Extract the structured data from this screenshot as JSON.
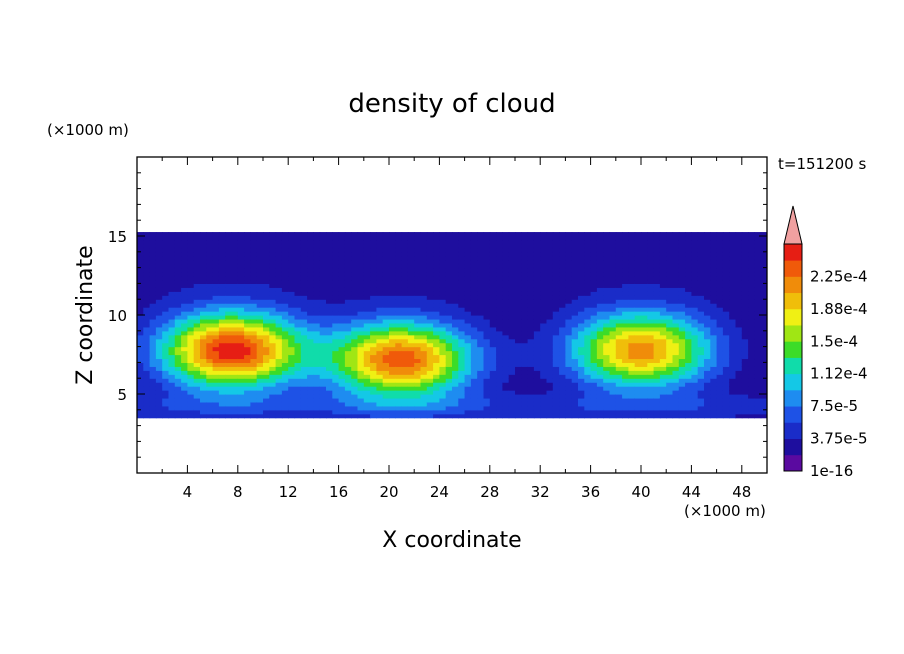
{
  "chart_data": {
    "type": "heatmap",
    "title": "density of cloud",
    "xlabel": "X coordinate",
    "ylabel": "Z coordinate",
    "x_unit": "(×1000 m)",
    "y_unit": "(×1000 m)",
    "time_label": "t=151200 s",
    "xlim": [
      0,
      50
    ],
    "ylim": [
      0,
      20
    ],
    "x_ticks": [
      4,
      8,
      12,
      16,
      20,
      24,
      28,
      32,
      36,
      40,
      44,
      48
    ],
    "y_ticks": [
      5,
      10,
      15
    ],
    "colorbar": {
      "labels": [
        "1e-16",
        "3.75e-5",
        "7.5e-5",
        "1.12e-4",
        "1.5e-4",
        "1.88e-4",
        "2.25e-4"
      ],
      "levels": [
        1e-16,
        1.875e-05,
        3.75e-05,
        5.625e-05,
        7.5e-05,
        9.375e-05,
        0.0001125,
        0.00013125,
        0.00015,
        0.00016875,
        0.0001875,
        0.00020625,
        0.000225,
        0.00024375
      ],
      "colors": [
        "#5a0aa0",
        "#1e0e9e",
        "#1a2cc8",
        "#1e52e6",
        "#1e8cf0",
        "#14c8e6",
        "#10dcaa",
        "#3cdc28",
        "#a0e614",
        "#f0f014",
        "#f0be0a",
        "#f08c0a",
        "#f05a0a",
        "#e61e14"
      ],
      "extend_color": "#f0a0a0"
    },
    "cloud_layer": {
      "base_z": 3.5,
      "top_z": 15.3,
      "peak_density": 0.00024
    },
    "cells": [
      {
        "x_center": 7.5,
        "z_center": 7.8,
        "peak_density": 0.00024
      },
      {
        "x_center": 21,
        "z_center": 7.2,
        "peak_density": 0.00022
      },
      {
        "x_center": 40,
        "z_center": 7.8,
        "peak_density": 0.0002
      }
    ]
  }
}
